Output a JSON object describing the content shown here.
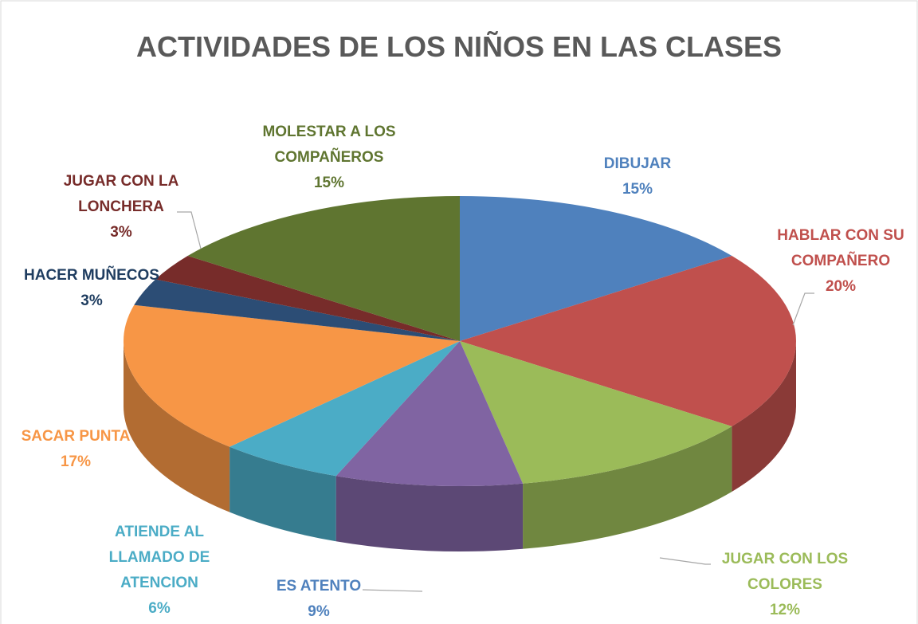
{
  "chart_data": {
    "type": "pie3d",
    "title": "ACTIVIDADES DE LOS NIÑOS EN  LAS CLASES",
    "categories": [
      "DIBUJAR",
      "HABLAR CON SU COMPAÑERO",
      "JUGAR CON LOS COLORES",
      "ES ATENTO",
      "ATIENDE AL LLAMADO DE ATENCION",
      "SACAR PUNTA",
      "HACER MUÑECOS",
      "JUGAR CON LA LONCHERA",
      "MOLESTAR A LOS COMPAÑEROS"
    ],
    "values": [
      15,
      20,
      12,
      9,
      6,
      17,
      3,
      3,
      15
    ],
    "value_labels": [
      "15%",
      "20%",
      "12%",
      "9%",
      "6%",
      "17%",
      "3%",
      "3%",
      "15%"
    ],
    "colors": [
      "#4f81bd",
      "#c0504d",
      "#9bbb59",
      "#8064a2",
      "#4bacc6",
      "#f79646",
      "#2c4d75",
      "#772c2a",
      "#5f7530"
    ]
  }
}
